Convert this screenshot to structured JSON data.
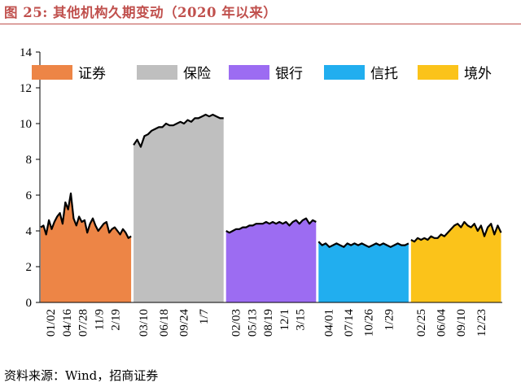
{
  "title": "图 25:  其他机构久期变动（2020 年以来）",
  "source": "资料来源：Wind，招商证券",
  "chart_data": {
    "type": "area",
    "ylim": [
      0,
      14
    ],
    "yticks": [
      0,
      2,
      4,
      6,
      8,
      10,
      12,
      14
    ],
    "grid": false,
    "legend_position": "top",
    "series": [
      {
        "name": "证券",
        "color": "#ed8546",
        "ticks": [
          "01/02",
          "04/16",
          "07/28",
          "11/9",
          "2/19"
        ],
        "values": [
          4.2,
          4.3,
          3.8,
          4.6,
          4.1,
          4.5,
          4.8,
          5.0,
          4.4,
          5.6,
          5.2,
          6.1,
          4.7,
          4.3,
          4.8,
          4.5,
          4.6,
          3.9,
          4.4,
          4.7,
          4.3,
          4.0,
          4.2,
          4.4,
          4.5,
          3.9,
          4.1,
          4.2,
          4.0,
          3.8,
          4.1,
          3.9,
          3.6,
          3.7
        ]
      },
      {
        "name": "保险",
        "color": "#bfbfbf",
        "ticks": [
          "03/10",
          "06/18",
          "09/24",
          "1/7"
        ],
        "values": [
          8.8,
          9.1,
          8.7,
          9.3,
          9.4,
          9.6,
          9.7,
          9.8,
          9.8,
          10.0,
          9.9,
          9.9,
          10.0,
          10.1,
          10.0,
          10.2,
          10.1,
          10.3,
          10.3,
          10.4,
          10.5,
          10.4,
          10.5,
          10.4,
          10.3,
          10.3
        ]
      },
      {
        "name": "银行",
        "color": "#9c6cf2",
        "ticks": [
          "02/03",
          "05/13",
          "08/19",
          "12/1",
          "3/15"
        ],
        "values": [
          4.0,
          3.9,
          4.0,
          4.1,
          4.1,
          4.2,
          4.2,
          4.3,
          4.3,
          4.4,
          4.4,
          4.4,
          4.5,
          4.4,
          4.5,
          4.4,
          4.5,
          4.4,
          4.5,
          4.3,
          4.5,
          4.6,
          4.4,
          4.6,
          4.7,
          4.4,
          4.6,
          4.5
        ]
      },
      {
        "name": "信托",
        "color": "#21aeef",
        "ticks": [
          "04/01",
          "07/14",
          "10/26",
          "1/29"
        ],
        "values": [
          3.4,
          3.2,
          3.3,
          3.1,
          3.2,
          3.3,
          3.2,
          3.1,
          3.3,
          3.2,
          3.3,
          3.2,
          3.3,
          3.2,
          3.1,
          3.2,
          3.3,
          3.2,
          3.3,
          3.2,
          3.1,
          3.2,
          3.3,
          3.2,
          3.2,
          3.3
        ]
      },
      {
        "name": "境外",
        "color": "#fbc31a",
        "ticks": [
          "02/25",
          "06/04",
          "09/10",
          "12/23"
        ],
        "values": [
          3.5,
          3.4,
          3.6,
          3.5,
          3.6,
          3.5,
          3.7,
          3.6,
          3.6,
          3.8,
          3.7,
          3.9,
          4.1,
          4.3,
          4.4,
          4.2,
          4.5,
          4.3,
          4.2,
          4.4,
          4.0,
          4.3,
          3.7,
          4.2,
          4.4,
          3.8,
          4.3,
          3.9
        ]
      }
    ]
  }
}
